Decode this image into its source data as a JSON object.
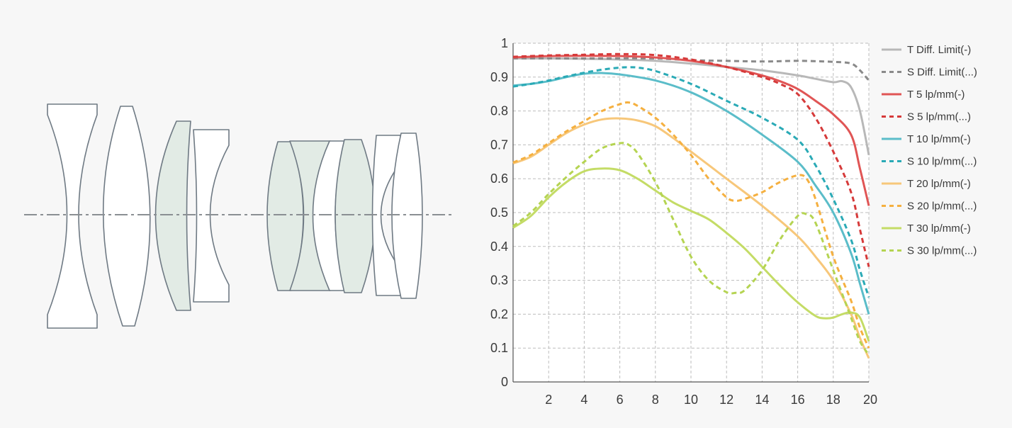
{
  "lens_diagram": {
    "colors": {
      "outline": "#6f7a84",
      "clear": "#ffffff",
      "tinted": "#e2ebe5",
      "axis": "#8a8f93"
    }
  },
  "chart_data": {
    "type": "line",
    "xlim": [
      0,
      20
    ],
    "ylim": [
      0,
      1
    ],
    "x_ticks": [
      2,
      4,
      6,
      8,
      10,
      12,
      14,
      16,
      18,
      20
    ],
    "y_ticks": [
      0,
      0.1,
      0.2,
      0.3,
      0.4,
      0.5,
      0.6,
      0.7,
      0.8,
      0.9,
      1
    ],
    "x_tick_labels": [
      "2",
      "4",
      "6",
      "8",
      "10",
      "12",
      "14",
      "16",
      "18",
      "20"
    ],
    "y_tick_labels": [
      "0",
      "0.1",
      "0.2",
      "0.3",
      "0.4",
      "0.5",
      "0.6",
      "0.7",
      "0.8",
      "0.9",
      "1"
    ],
    "grid": true,
    "legend_position": "right",
    "series": [
      {
        "name": "T Diff. Limit(-)",
        "color": "#b8b8b8",
        "dash": false,
        "x": [
          0,
          2,
          4,
          6,
          8,
          10,
          12,
          14,
          16,
          17,
          18,
          18.5,
          19,
          19.5,
          20
        ],
        "y": [
          0.955,
          0.955,
          0.954,
          0.952,
          0.948,
          0.94,
          0.93,
          0.92,
          0.905,
          0.895,
          0.885,
          0.888,
          0.87,
          0.8,
          0.67
        ]
      },
      {
        "name": "S Diff. Limit(...)",
        "color": "#8a8a8a",
        "dash": true,
        "x": [
          0,
          2,
          4,
          6,
          8,
          10,
          12,
          14,
          16,
          18,
          19,
          19.5,
          20
        ],
        "y": [
          0.955,
          0.955,
          0.955,
          0.955,
          0.955,
          0.95,
          0.948,
          0.946,
          0.948,
          0.945,
          0.94,
          0.92,
          0.89
        ]
      },
      {
        "name": "T 5 lp/mm(-)",
        "color": "#e05555",
        "dash": false,
        "x": [
          0,
          2,
          4,
          6,
          8,
          10,
          12,
          14,
          15,
          16,
          17,
          18,
          19,
          19.5,
          20
        ],
        "y": [
          0.958,
          0.962,
          0.963,
          0.962,
          0.958,
          0.948,
          0.93,
          0.905,
          0.888,
          0.865,
          0.83,
          0.79,
          0.73,
          0.63,
          0.52
        ]
      },
      {
        "name": "S 5 lp/mm(...)",
        "color": "#d63a3a",
        "dash": true,
        "x": [
          0,
          2,
          4,
          6,
          8,
          10,
          12,
          14,
          15,
          16,
          17,
          18,
          19,
          19.5,
          20
        ],
        "y": [
          0.96,
          0.964,
          0.966,
          0.968,
          0.965,
          0.952,
          0.93,
          0.9,
          0.88,
          0.85,
          0.78,
          0.68,
          0.56,
          0.45,
          0.34
        ]
      },
      {
        "name": "T 10 lp/mm(-)",
        "color": "#5bbdc9",
        "dash": false,
        "x": [
          0,
          1,
          2,
          3,
          4,
          5,
          6,
          8,
          10,
          12,
          14,
          16,
          17,
          18,
          19,
          19.5,
          20
        ],
        "y": [
          0.875,
          0.88,
          0.888,
          0.9,
          0.91,
          0.912,
          0.908,
          0.89,
          0.855,
          0.8,
          0.73,
          0.65,
          0.58,
          0.5,
          0.38,
          0.29,
          0.2
        ]
      },
      {
        "name": "S 10 lp/mm(...)",
        "color": "#2aaab6",
        "dash": true,
        "x": [
          0,
          1,
          2,
          3,
          4,
          5,
          6,
          6.5,
          7,
          8,
          10,
          12,
          14,
          16,
          17,
          18,
          19,
          19.5,
          20
        ],
        "y": [
          0.872,
          0.88,
          0.89,
          0.902,
          0.913,
          0.922,
          0.928,
          0.929,
          0.928,
          0.918,
          0.88,
          0.83,
          0.78,
          0.715,
          0.64,
          0.54,
          0.42,
          0.33,
          0.25
        ]
      },
      {
        "name": "T 20 lp/mm(-)",
        "color": "#f7c77a",
        "dash": false,
        "x": [
          0,
          1,
          2,
          3,
          4,
          5,
          6,
          7,
          8,
          9,
          10,
          12,
          14,
          16,
          17,
          18,
          19,
          19.5,
          20
        ],
        "y": [
          0.645,
          0.665,
          0.7,
          0.735,
          0.76,
          0.775,
          0.778,
          0.772,
          0.755,
          0.72,
          0.68,
          0.6,
          0.52,
          0.43,
          0.37,
          0.3,
          0.2,
          0.13,
          0.07
        ]
      },
      {
        "name": "S 20 lp/mm(...)",
        "color": "#f5b040",
        "dash": true,
        "x": [
          0,
          1,
          2,
          3,
          4,
          5,
          6,
          6.5,
          7,
          8,
          9,
          10,
          11,
          12,
          12.5,
          13,
          14,
          15,
          16,
          16.5,
          17,
          18,
          19,
          19.5,
          20
        ],
        "y": [
          0.648,
          0.67,
          0.705,
          0.74,
          0.77,
          0.8,
          0.82,
          0.825,
          0.815,
          0.78,
          0.73,
          0.67,
          0.6,
          0.545,
          0.535,
          0.54,
          0.56,
          0.59,
          0.61,
          0.6,
          0.54,
          0.37,
          0.24,
          0.16,
          0.1
        ]
      },
      {
        "name": "T 30 lp/mm(-)",
        "color": "#c4dc66",
        "dash": false,
        "x": [
          0,
          1,
          2,
          3,
          4,
          5,
          6,
          7,
          8,
          9,
          10,
          11,
          12,
          13,
          14,
          15,
          16,
          17,
          17.5,
          18,
          18.5,
          19,
          19.5,
          20
        ],
        "y": [
          0.455,
          0.49,
          0.545,
          0.59,
          0.622,
          0.63,
          0.625,
          0.6,
          0.565,
          0.53,
          0.505,
          0.48,
          0.44,
          0.395,
          0.34,
          0.285,
          0.235,
          0.195,
          0.188,
          0.19,
          0.2,
          0.205,
          0.19,
          0.12
        ]
      },
      {
        "name": "S 30 lp/mm(...)",
        "color": "#b5d452",
        "dash": true,
        "x": [
          0,
          1,
          2,
          3,
          4,
          5,
          6,
          6.5,
          7,
          8,
          9,
          10,
          11,
          12,
          12.5,
          13,
          14,
          15,
          16,
          16.5,
          17,
          18,
          19,
          19.5,
          20
        ],
        "y": [
          0.46,
          0.5,
          0.555,
          0.605,
          0.65,
          0.69,
          0.705,
          0.7,
          0.675,
          0.59,
          0.48,
          0.37,
          0.3,
          0.265,
          0.263,
          0.27,
          0.33,
          0.42,
          0.49,
          0.495,
          0.47,
          0.33,
          0.19,
          0.12,
          0.08
        ]
      }
    ]
  }
}
